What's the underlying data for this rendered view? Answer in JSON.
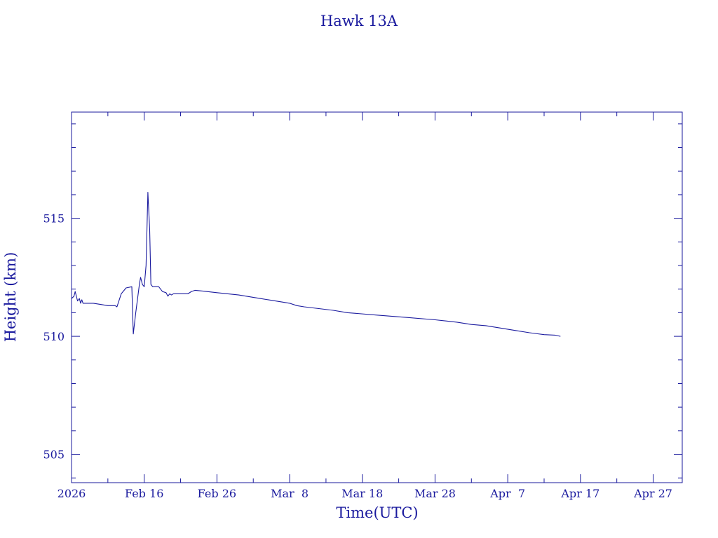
{
  "chart_data": {
    "type": "line",
    "title": "Hawk 13A",
    "xlabel": "Time(UTC)",
    "ylabel": "Height (km)",
    "x_ticks": [
      {
        "date": "2026-02-06",
        "label": "2026"
      },
      {
        "date": "2026-02-16",
        "label": "Feb 16"
      },
      {
        "date": "2026-02-26",
        "label": "Feb 26"
      },
      {
        "date": "2026-03-08",
        "label": "Mar  8"
      },
      {
        "date": "2026-03-18",
        "label": "Mar 18"
      },
      {
        "date": "2026-03-28",
        "label": "Mar 28"
      },
      {
        "date": "2026-04-07",
        "label": "Apr  7"
      },
      {
        "date": "2026-04-17",
        "label": "Apr 17"
      },
      {
        "date": "2026-04-27",
        "label": "Apr 27"
      }
    ],
    "y_ticks": [
      505,
      510,
      515
    ],
    "xlim": [
      "2026-02-06T00:00",
      "2026-05-01T00:00"
    ],
    "ylim": [
      503.8,
      519.5
    ],
    "color": "#1a1a9e",
    "series": [
      {
        "points": [
          [
            "2026-02-06T00:00",
            511.6
          ],
          [
            "2026-02-06T08:00",
            511.7
          ],
          [
            "2026-02-06T12:00",
            511.9
          ],
          [
            "2026-02-06T20:00",
            511.5
          ],
          [
            "2026-02-07T02:00",
            511.6
          ],
          [
            "2026-02-07T06:00",
            511.4
          ],
          [
            "2026-02-07T10:00",
            511.55
          ],
          [
            "2026-02-07T14:00",
            511.4
          ],
          [
            "2026-02-07T20:00",
            511.4
          ],
          [
            "2026-02-08T00:00",
            511.4
          ],
          [
            "2026-02-09T00:00",
            511.4
          ],
          [
            "2026-02-10T00:00",
            511.35
          ],
          [
            "2026-02-11T00:00",
            511.3
          ],
          [
            "2026-02-12T00:00",
            511.3
          ],
          [
            "2026-02-12T06:00",
            511.25
          ],
          [
            "2026-02-12T20:00",
            511.8
          ],
          [
            "2026-02-13T12:00",
            512.05
          ],
          [
            "2026-02-14T07:00",
            512.1
          ],
          [
            "2026-02-14T12:00",
            510.1
          ],
          [
            "2026-02-14T20:00",
            511.0
          ],
          [
            "2026-02-15T08:00",
            512.2
          ],
          [
            "2026-02-15T12:00",
            512.5
          ],
          [
            "2026-02-15T18:00",
            512.2
          ],
          [
            "2026-02-16T00:00",
            512.1
          ],
          [
            "2026-02-16T06:00",
            513.0
          ],
          [
            "2026-02-16T12:00",
            516.1
          ],
          [
            "2026-02-16T18:00",
            514.5
          ],
          [
            "2026-02-16T22:00",
            512.2
          ],
          [
            "2026-02-17T04:00",
            512.1
          ],
          [
            "2026-02-17T12:00",
            512.1
          ],
          [
            "2026-02-18T00:00",
            512.1
          ],
          [
            "2026-02-18T12:00",
            511.9
          ],
          [
            "2026-02-19T00:00",
            511.85
          ],
          [
            "2026-02-19T06:00",
            511.7
          ],
          [
            "2026-02-19T12:00",
            511.8
          ],
          [
            "2026-02-19T18:00",
            511.75
          ],
          [
            "2026-02-20T00:00",
            511.8
          ],
          [
            "2026-02-21T00:00",
            511.8
          ],
          [
            "2026-02-22T00:00",
            511.8
          ],
          [
            "2026-02-22T12:00",
            511.9
          ],
          [
            "2026-02-23T00:00",
            511.95
          ],
          [
            "2026-02-24T00:00",
            511.92
          ],
          [
            "2026-02-26T00:00",
            511.85
          ],
          [
            "2026-03-01T00:00",
            511.75
          ],
          [
            "2026-03-04T00:00",
            511.6
          ],
          [
            "2026-03-07T00:00",
            511.45
          ],
          [
            "2026-03-08T00:00",
            511.4
          ],
          [
            "2026-03-09T00:00",
            511.3
          ],
          [
            "2026-03-10T00:00",
            511.25
          ],
          [
            "2026-03-14T00:00",
            511.1
          ],
          [
            "2026-03-16T00:00",
            511.0
          ],
          [
            "2026-03-20T00:00",
            510.9
          ],
          [
            "2026-03-24T00:00",
            510.8
          ],
          [
            "2026-03-28T00:00",
            510.7
          ],
          [
            "2026-03-31T00:00",
            510.6
          ],
          [
            "2026-04-02T00:00",
            510.5
          ],
          [
            "2026-04-04T00:00",
            510.45
          ],
          [
            "2026-04-06T00:00",
            510.35
          ],
          [
            "2026-04-08T00:00",
            510.25
          ],
          [
            "2026-04-10T00:00",
            510.15
          ],
          [
            "2026-04-12T00:00",
            510.07
          ],
          [
            "2026-04-13T12:00",
            510.05
          ],
          [
            "2026-04-14T06:00",
            510.0
          ]
        ]
      }
    ]
  }
}
